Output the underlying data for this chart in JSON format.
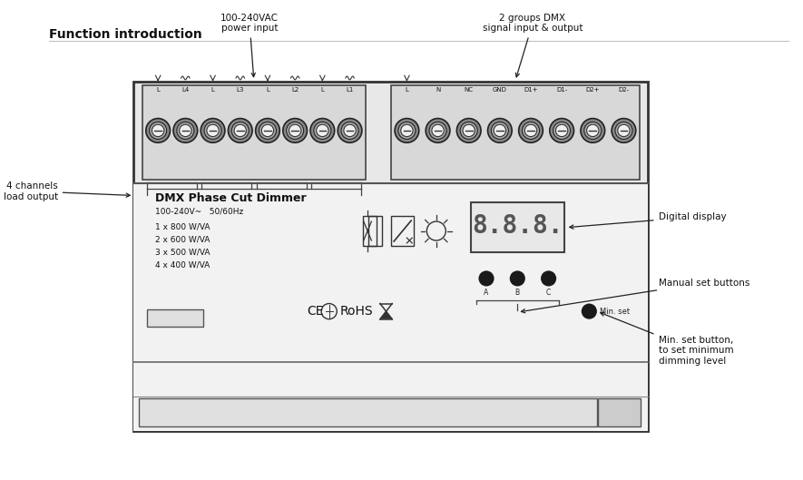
{
  "title": "Function introduction",
  "title_fontsize": 10,
  "title_fontweight": "bold",
  "bg_color": "#ffffff",
  "top_section_labels_left": [
    "L",
    "L4",
    "L",
    "L3",
    "L",
    "L2",
    "L",
    "L1"
  ],
  "top_section_labels_right": [
    "L",
    "N",
    "NC",
    "GND",
    "D1+",
    "D1-",
    "D2+",
    "D2-"
  ],
  "annotation_power": "100-240VAC\npower input",
  "annotation_dmx": "2 groups DMX\nsignal input & output",
  "annotation_4ch": "4 channels\nload output",
  "annotation_digital": "Digital display",
  "annotation_manual": "Manual set buttons",
  "annotation_minset": "Min. set button,\nto set minimum\ndimming level",
  "main_text_title": "DMX Phase Cut Dimmer",
  "main_text_voltage": "100-240V~   50/60Hz",
  "main_text_loads": "1 x 800 W/VA\n2 x 600 W/VA\n3 x 500 W/VA\n4 x 400 W/VA",
  "line_color": "#222222",
  "border_color": "#333333"
}
